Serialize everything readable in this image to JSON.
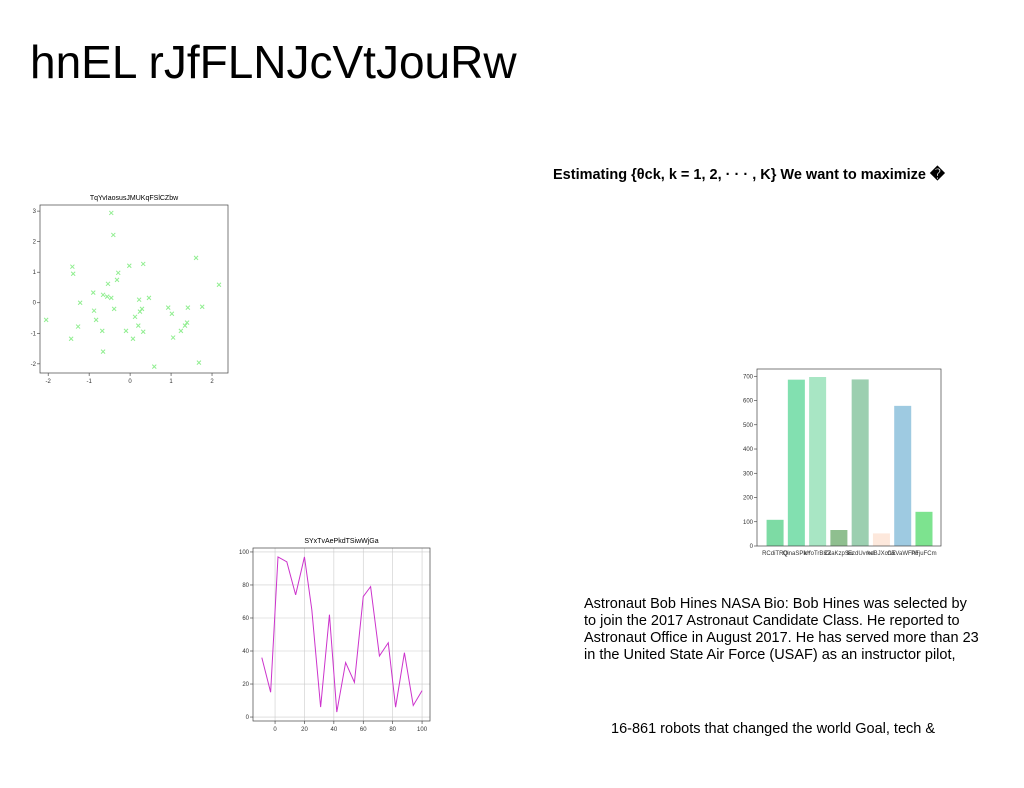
{
  "header": {
    "title": "hnEL rJfFLNJcVtJouRw"
  },
  "heading": "Estimating {θck, k = 1, 2, · · · , K} We want to maximize �",
  "paragraph": [
    "Astronaut Bob Hines NASA Bio: Bob Hines was selected by",
    "to join the 2017 Astronaut Candidate Class. He reported to",
    "Astronaut Office in August 2017. He has served more than 23",
    "in the United State Air Force (USAF) as an instructor pilot,"
  ],
  "footer": "16-861 robots that changed the world Goal, tech &",
  "charts": [
    {
      "type": "scatter",
      "title": "TqYvIaosusJMUKqFSlCZbw",
      "color": "#90ee90",
      "x": [
        -2.05,
        -1.41,
        -1.39,
        -1.44,
        -1.27,
        -1.22,
        -0.9,
        -0.88,
        -0.83,
        -0.68,
        -0.66,
        -0.66,
        -0.56,
        -0.54,
        -0.46,
        -0.46,
        -0.41,
        -0.39,
        -0.32,
        -0.29,
        -0.1,
        -0.02,
        0.07,
        0.12,
        0.2,
        0.22,
        0.24,
        0.29,
        0.32,
        0.32,
        0.46,
        0.59,
        0.93,
        1.02,
        1.05,
        1.24,
        1.34,
        1.39,
        1.41,
        1.61,
        1.68,
        1.76,
        2.17
      ],
      "values": [
        -0.56,
        1.18,
        0.95,
        -1.18,
        -0.78,
        0.0,
        0.33,
        -0.26,
        -0.56,
        -0.92,
        -1.6,
        0.26,
        0.2,
        0.62,
        0.16,
        2.94,
        2.22,
        -0.2,
        0.75,
        0.98,
        -0.92,
        1.21,
        -1.18,
        -0.46,
        -0.75,
        0.1,
        -0.29,
        -0.2,
        1.27,
        -0.95,
        0.16,
        -2.09,
        -0.16,
        -0.36,
        -1.14,
        -0.92,
        -0.75,
        -0.65,
        -0.16,
        1.47,
        -1.96,
        -0.13,
        0.59
      ],
      "xlim": [
        -2.2,
        2.39
      ],
      "xticks": [
        -2,
        -1,
        0,
        1,
        2
      ],
      "ylim": [
        -2.3,
        3.2
      ],
      "yticks": [
        -2,
        -1,
        0,
        1,
        2,
        3
      ],
      "grid": false
    },
    {
      "type": "bar",
      "categories": [
        "RCdiTRQ",
        "QinaSPkrI",
        "kYoTrBKZ",
        "ZxaKzpSw",
        "IEzdUvmd",
        "keBJXcrvk",
        "CEVaWFhd",
        "PFjuFCm"
      ],
      "values": [
        108,
        686,
        697,
        66,
        687,
        52,
        578,
        141
      ],
      "colors": [
        "#7ddba4",
        "#82e0b0",
        "#a8e6c4",
        "#8fbf8f",
        "#9ccfb0",
        "#fde8dc",
        "#9ecae1",
        "#7de38f"
      ],
      "ylim": [
        0,
        730
      ],
      "yticks": [
        0,
        100,
        200,
        300,
        400,
        500,
        600,
        700
      ],
      "grid": false
    },
    {
      "type": "line",
      "title": "SYxTvAePkdTSiwWjGa",
      "color": "#cc33cc",
      "x": [
        -9,
        -3,
        2,
        8,
        14,
        20,
        25,
        31,
        37,
        42,
        48,
        54,
        60,
        65,
        71,
        77,
        82,
        88,
        94,
        100
      ],
      "values": [
        36,
        15,
        97,
        94,
        74,
        97,
        65,
        6,
        62,
        3,
        33,
        21,
        73,
        79,
        37,
        45,
        6,
        39,
        7,
        16
      ],
      "xlim": [
        -15,
        105.4
      ],
      "xticks": [
        0,
        20,
        40,
        60,
        80,
        100
      ],
      "ylim": [
        -2.4,
        102.4
      ],
      "yticks": [
        0,
        20,
        40,
        60,
        80,
        100
      ],
      "grid": true
    }
  ]
}
